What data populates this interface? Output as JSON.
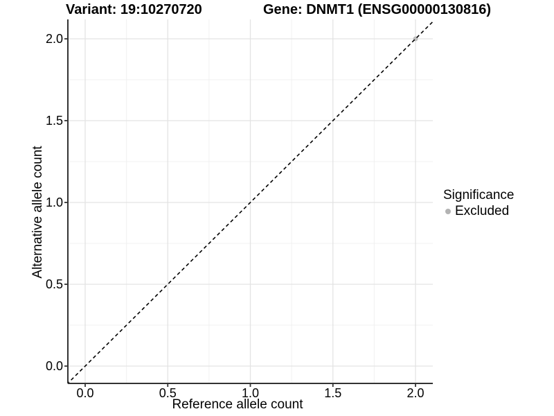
{
  "chart_data": {
    "type": "scatter",
    "titles": {
      "left": "Variant: 19:10270720",
      "right": "Gene: DNMT1 (ENSG00000130816)"
    },
    "xlabel": "Reference allele count",
    "ylabel": "Alternative allele count",
    "x_tick_labels": [
      "0.0",
      "0.5",
      "1.0",
      "1.5",
      "2.0"
    ],
    "y_tick_labels": [
      "0.0",
      "0.5",
      "1.0",
      "1.5",
      "2.0"
    ],
    "xlim": [
      -0.105,
      2.105
    ],
    "ylim": [
      -0.106,
      2.119
    ],
    "grid": "major and minor gridlines, light grey on white",
    "reference_line": {
      "type": "identity y=x",
      "style": "dashed",
      "color": "#000000"
    },
    "series": [
      {
        "name": "Excluded",
        "color": "#bdbdbd",
        "points": [
          {
            "x": 2.0,
            "y": 2.0
          }
        ]
      }
    ],
    "legend": {
      "position": "right",
      "title": "Significance",
      "entries": [
        {
          "label": "Excluded",
          "color": "#b3b3b3",
          "marker": "circle"
        }
      ]
    }
  },
  "colors": {
    "background": "#ffffff",
    "axis_line": "#333333",
    "tick_mark": "#333333",
    "grid_major": "#e3e3e3",
    "grid_minor": "#f0f0f0",
    "text": "#000000"
  }
}
